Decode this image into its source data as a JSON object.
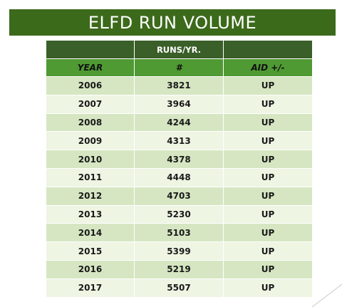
{
  "title": "ELFD RUN VOLUME",
  "table": {
    "header_top": [
      "",
      "RUNS/YR.",
      ""
    ],
    "header_columns": [
      "YEAR",
      "#",
      "AID +/-"
    ],
    "rows": [
      {
        "year": "2006",
        "runs": "3821",
        "aid": "UP"
      },
      {
        "year": "2007",
        "runs": "3964",
        "aid": "UP"
      },
      {
        "year": "2008",
        "runs": "4244",
        "aid": "UP"
      },
      {
        "year": "2009",
        "runs": "4313",
        "aid": "UP"
      },
      {
        "year": "2010",
        "runs": "4378",
        "aid": "UP"
      },
      {
        "year": "2011",
        "runs": "4448",
        "aid": "UP"
      },
      {
        "year": "2012",
        "runs": "4703",
        "aid": "UP"
      },
      {
        "year": "2013",
        "runs": "5230",
        "aid": "UP"
      },
      {
        "year": "2014",
        "runs": "5103",
        "aid": "UP"
      },
      {
        "year": "2015",
        "runs": "5399",
        "aid": "UP"
      },
      {
        "year": "2016",
        "runs": "5219",
        "aid": "UP"
      },
      {
        "year": "2017",
        "runs": "5507",
        "aid": "UP"
      }
    ]
  },
  "colors": {
    "banner": "#3c6a1b",
    "header_top": "#3a5f28",
    "header_columns": "#4f9a33",
    "row_odd": "#d6e6c2",
    "row_even": "#eef5e3"
  }
}
